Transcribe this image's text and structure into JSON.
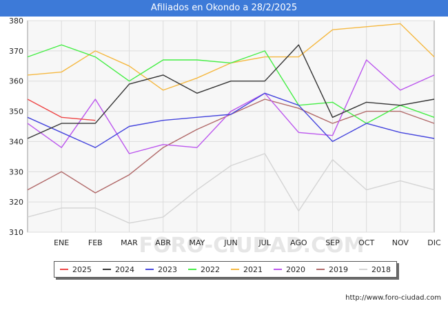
{
  "header": {
    "title": "Afiliados en Okondo a 28/2/2025"
  },
  "footer": {
    "url": "http://www.foro-ciudad.com"
  },
  "watermark": "FORO-CIUDAD.COM",
  "chart_data": {
    "type": "line",
    "title": "Afiliados en Okondo a 28/2/2025",
    "xlabel": "",
    "ylabel": "",
    "ylim": [
      310,
      380
    ],
    "yticks": [
      310,
      320,
      330,
      340,
      350,
      360,
      370,
      380
    ],
    "grid": true,
    "legend_position": "bottom",
    "x": [
      "",
      "ENE",
      "FEB",
      "MAR",
      "ABR",
      "MAY",
      "JUN",
      "JUL",
      "AGO",
      "SEP",
      "OCT",
      "NOV",
      "DIC"
    ],
    "series": [
      {
        "name": "2025",
        "color": "#ee4444",
        "values": [
          354,
          348,
          347,
          null,
          null,
          null,
          null,
          null,
          null,
          null,
          null,
          null,
          null
        ]
      },
      {
        "name": "2024",
        "color": "#333333",
        "values": [
          341,
          346,
          346,
          359,
          362,
          356,
          360,
          360,
          372,
          348,
          353,
          352,
          354
        ]
      },
      {
        "name": "2023",
        "color": "#4444dd",
        "values": [
          348,
          343,
          338,
          345,
          347,
          348,
          349,
          356,
          352,
          340,
          346,
          343,
          341
        ]
      },
      {
        "name": "2022",
        "color": "#44ee44",
        "values": [
          368,
          372,
          368,
          360,
          367,
          367,
          366,
          370,
          352,
          353,
          346,
          352,
          348
        ]
      },
      {
        "name": "2021",
        "color": "#f5b840",
        "values": [
          362,
          363,
          370,
          365,
          357,
          361,
          366,
          368,
          368,
          377,
          378,
          379,
          368
        ]
      },
      {
        "name": "2020",
        "color": "#bb55ee",
        "values": [
          346,
          338,
          354,
          336,
          339,
          338,
          350,
          356,
          343,
          342,
          367,
          357,
          362
        ]
      },
      {
        "name": "2019",
        "color": "#b06868",
        "values": [
          324,
          330,
          323,
          329,
          338,
          344,
          349,
          354,
          351,
          346,
          350,
          350,
          346
        ]
      },
      {
        "name": "2018",
        "color": "#d4d4d4",
        "values": [
          315,
          318,
          318,
          313,
          315,
          324,
          332,
          336,
          317,
          334,
          324,
          327,
          324
        ]
      }
    ]
  }
}
